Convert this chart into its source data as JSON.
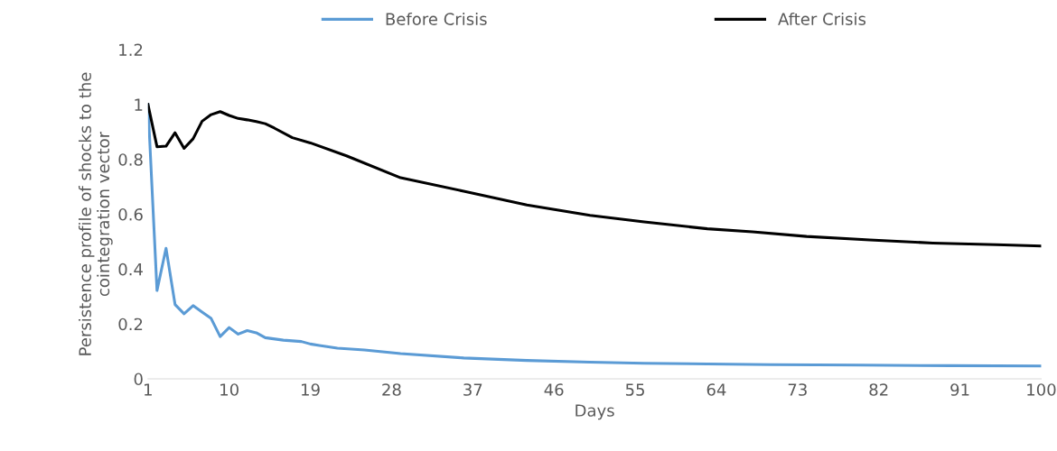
{
  "chart_data": {
    "type": "line",
    "xlabel": "Days",
    "ylabel": "Persistence profile of shocks to the\ncointegration vector",
    "xlim": [
      1,
      100
    ],
    "xticks": [
      1,
      10,
      19,
      28,
      37,
      46,
      55,
      64,
      73,
      82,
      91,
      100
    ],
    "ylim": [
      0,
      1.2
    ],
    "yticks": [
      0,
      0.2,
      0.4,
      0.6,
      0.8,
      1,
      1.2
    ],
    "grid": false,
    "legend": "top",
    "marker": "none",
    "line_style": "solid",
    "series": [
      {
        "name": "Before Crisis",
        "color": "#5b9bd5",
        "x": [
          1,
          2,
          3,
          4,
          5,
          6,
          7,
          8,
          9,
          10,
          11,
          12,
          13,
          14,
          16,
          18,
          19,
          20,
          22,
          25,
          29,
          36,
          43,
          50,
          56,
          63,
          70,
          80,
          90,
          100
        ],
        "values": [
          1.0,
          0.322,
          0.476,
          0.271,
          0.237,
          0.267,
          0.243,
          0.22,
          0.154,
          0.187,
          0.163,
          0.176,
          0.168,
          0.15,
          0.141,
          0.136,
          0.127,
          0.122,
          0.112,
          0.105,
          0.092,
          0.076,
          0.067,
          0.061,
          0.057,
          0.054,
          0.052,
          0.05,
          0.048,
          0.047
        ]
      },
      {
        "name": "After Crisis",
        "color": "#000000",
        "x": [
          1,
          2,
          3,
          4,
          5,
          6,
          7,
          8,
          9,
          10,
          11,
          12,
          13,
          14,
          15,
          17,
          19,
          23,
          29,
          36,
          43,
          50,
          56,
          63,
          68,
          74,
          81,
          88,
          95,
          100
        ],
        "values": [
          1.0,
          0.846,
          0.848,
          0.897,
          0.84,
          0.875,
          0.939,
          0.963,
          0.974,
          0.96,
          0.949,
          0.944,
          0.938,
          0.93,
          0.914,
          0.879,
          0.86,
          0.813,
          0.733,
          0.684,
          0.634,
          0.596,
          0.572,
          0.547,
          0.536,
          0.519,
          0.506,
          0.495,
          0.489,
          0.484
        ]
      }
    ]
  }
}
